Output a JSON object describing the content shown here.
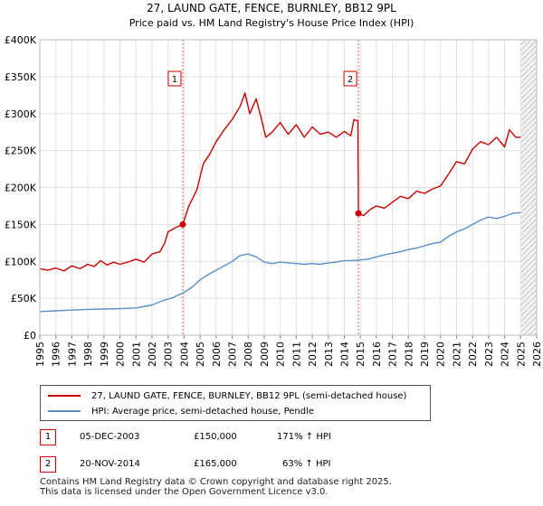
{
  "chart_data": {
    "type": "line",
    "title": "27, LAUND GATE, FENCE, BURNLEY, BB12 9PL",
    "subtitle": "Price paid vs. HM Land Registry's House Price Index (HPI)",
    "xlabel": "",
    "ylabel": "",
    "xlim": [
      1995,
      2026
    ],
    "ylim": [
      0,
      400000
    ],
    "grid": true,
    "y_ticks": [
      {
        "value": 0,
        "label": "£0"
      },
      {
        "value": 50000,
        "label": "£50K"
      },
      {
        "value": 100000,
        "label": "£100K"
      },
      {
        "value": 150000,
        "label": "£150K"
      },
      {
        "value": 200000,
        "label": "£200K"
      },
      {
        "value": 250000,
        "label": "£250K"
      },
      {
        "value": 300000,
        "label": "£300K"
      },
      {
        "value": 350000,
        "label": "£350K"
      },
      {
        "value": 400000,
        "label": "£400K"
      }
    ],
    "x_ticks": [
      "1995",
      "1996",
      "1997",
      "1998",
      "1999",
      "2000",
      "2001",
      "2002",
      "2003",
      "2004",
      "2005",
      "2006",
      "2007",
      "2008",
      "2009",
      "2010",
      "2011",
      "2012",
      "2013",
      "2014",
      "2015",
      "2016",
      "2017",
      "2018",
      "2019",
      "2020",
      "2021",
      "2022",
      "2023",
      "2024",
      "2025",
      "2026"
    ],
    "hatch_from": 2025.0,
    "series": [
      {
        "name": "27, LAUND GATE, FENCE, BURNLEY, BB12 9PL (semi-detached house)",
        "color": "#cc0000",
        "points": [
          [
            1995.0,
            90000
          ],
          [
            1995.5,
            88000
          ],
          [
            1996.0,
            91000
          ],
          [
            1996.5,
            87000
          ],
          [
            1997.0,
            94000
          ],
          [
            1997.5,
            90000
          ],
          [
            1998.0,
            96000
          ],
          [
            1998.4,
            93000
          ],
          [
            1998.8,
            101000
          ],
          [
            1999.2,
            95000
          ],
          [
            1999.6,
            99000
          ],
          [
            2000.0,
            96000
          ],
          [
            2000.5,
            99000
          ],
          [
            2001.0,
            103000
          ],
          [
            2001.5,
            99000
          ],
          [
            2002.0,
            110000
          ],
          [
            2002.5,
            113000
          ],
          [
            2002.8,
            125000
          ],
          [
            2003.0,
            140000
          ],
          [
            2003.5,
            146000
          ],
          [
            2003.92,
            150000
          ],
          [
            2004.3,
            175000
          ],
          [
            2004.8,
            197000
          ],
          [
            2005.2,
            232000
          ],
          [
            2005.6,
            245000
          ],
          [
            2006.0,
            262000
          ],
          [
            2006.5,
            278000
          ],
          [
            2007.0,
            292000
          ],
          [
            2007.5,
            310000
          ],
          [
            2007.8,
            328000
          ],
          [
            2008.1,
            300000
          ],
          [
            2008.5,
            320000
          ],
          [
            2008.8,
            295000
          ],
          [
            2009.1,
            268000
          ],
          [
            2009.5,
            275000
          ],
          [
            2010.0,
            288000
          ],
          [
            2010.5,
            272000
          ],
          [
            2011.0,
            285000
          ],
          [
            2011.5,
            268000
          ],
          [
            2012.0,
            282000
          ],
          [
            2012.5,
            272000
          ],
          [
            2013.0,
            275000
          ],
          [
            2013.5,
            268000
          ],
          [
            2014.0,
            276000
          ],
          [
            2014.4,
            270000
          ],
          [
            2014.6,
            292000
          ],
          [
            2014.85,
            290000
          ],
          [
            2014.88,
            165000
          ],
          [
            2015.2,
            162000
          ],
          [
            2015.6,
            170000
          ],
          [
            2016.0,
            175000
          ],
          [
            2016.5,
            172000
          ],
          [
            2017.0,
            180000
          ],
          [
            2017.5,
            188000
          ],
          [
            2018.0,
            185000
          ],
          [
            2018.5,
            195000
          ],
          [
            2019.0,
            192000
          ],
          [
            2019.5,
            198000
          ],
          [
            2020.0,
            202000
          ],
          [
            2020.5,
            218000
          ],
          [
            2021.0,
            235000
          ],
          [
            2021.5,
            232000
          ],
          [
            2022.0,
            252000
          ],
          [
            2022.5,
            262000
          ],
          [
            2023.0,
            258000
          ],
          [
            2023.5,
            268000
          ],
          [
            2024.0,
            255000
          ],
          [
            2024.3,
            278000
          ],
          [
            2024.7,
            268000
          ],
          [
            2025.0,
            268000
          ]
        ]
      },
      {
        "name": "HPI: Average price, semi-detached house, Pendle",
        "color": "#5b8fc9",
        "points": [
          [
            1995.0,
            32000
          ],
          [
            1996.0,
            33000
          ],
          [
            1997.0,
            34000
          ],
          [
            1998.0,
            35000
          ],
          [
            1999.0,
            35500
          ],
          [
            2000.0,
            36000
          ],
          [
            2001.0,
            37000
          ],
          [
            2002.0,
            41000
          ],
          [
            2002.7,
            47000
          ],
          [
            2003.2,
            50000
          ],
          [
            2003.6,
            54000
          ],
          [
            2004.0,
            58000
          ],
          [
            2004.5,
            65000
          ],
          [
            2005.0,
            75000
          ],
          [
            2005.5,
            82000
          ],
          [
            2006.0,
            88000
          ],
          [
            2006.5,
            94000
          ],
          [
            2007.0,
            100000
          ],
          [
            2007.5,
            108000
          ],
          [
            2008.0,
            110000
          ],
          [
            2008.5,
            106000
          ],
          [
            2009.0,
            99000
          ],
          [
            2009.5,
            97000
          ],
          [
            2010.0,
            99000
          ],
          [
            2010.5,
            98000
          ],
          [
            2011.0,
            97000
          ],
          [
            2011.5,
            96000
          ],
          [
            2012.0,
            97000
          ],
          [
            2012.5,
            96000
          ],
          [
            2013.0,
            98000
          ],
          [
            2013.5,
            99000
          ],
          [
            2014.0,
            101000
          ],
          [
            2014.5,
            101000
          ],
          [
            2015.0,
            102000
          ],
          [
            2015.5,
            103000
          ],
          [
            2016.0,
            106000
          ],
          [
            2016.5,
            109000
          ],
          [
            2017.0,
            111000
          ],
          [
            2017.5,
            113000
          ],
          [
            2018.0,
            116000
          ],
          [
            2018.5,
            118000
          ],
          [
            2019.0,
            121000
          ],
          [
            2019.5,
            124000
          ],
          [
            2020.0,
            126000
          ],
          [
            2020.5,
            134000
          ],
          [
            2021.0,
            140000
          ],
          [
            2021.5,
            144000
          ],
          [
            2022.0,
            150000
          ],
          [
            2022.5,
            156000
          ],
          [
            2023.0,
            160000
          ],
          [
            2023.5,
            158000
          ],
          [
            2024.0,
            161000
          ],
          [
            2024.5,
            165000
          ],
          [
            2025.0,
            166000
          ]
        ]
      }
    ],
    "markers": [
      {
        "label": "1",
        "x": 2003.92,
        "y": 150000
      },
      {
        "label": "2",
        "x": 2014.88,
        "y": 165000
      }
    ]
  },
  "transactions": [
    {
      "num": "1",
      "date": "05-DEC-2003",
      "price": "£150,000",
      "hpi": "171% ↑ HPI"
    },
    {
      "num": "2",
      "date": "20-NOV-2014",
      "price": "£165,000",
      "hpi": "63% ↑ HPI"
    }
  ],
  "footer": {
    "line1": "Contains HM Land Registry data © Crown copyright and database right 2025.",
    "line2": "This data is licensed under the Open Government Licence v3.0."
  }
}
